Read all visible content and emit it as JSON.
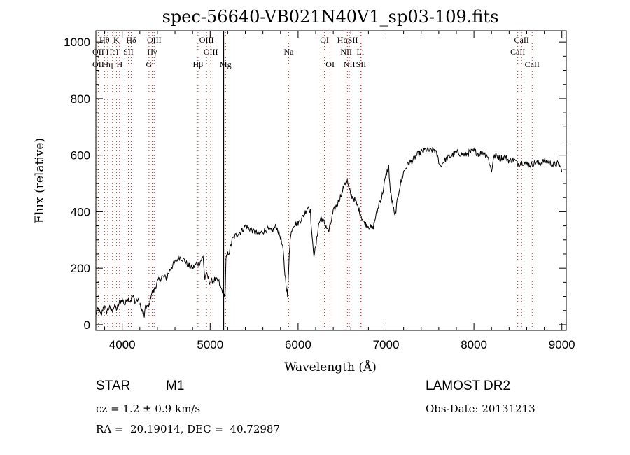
{
  "chart_data": {
    "type": "line",
    "title": "spec-56640-VB021N40V1_sp03-109.fits",
    "xlabel": "Wavelength (Å)",
    "ylabel": "Flux (relative)",
    "xlim": [
      3700,
      9050
    ],
    "ylim": [
      -20,
      1040
    ],
    "xticks": [
      4000,
      5000,
      6000,
      7000,
      8000,
      9000
    ],
    "yticks": [
      0,
      200,
      400,
      600,
      800,
      1000
    ],
    "grid": false,
    "series": [
      {
        "x": [
          3700,
          3730,
          3760,
          3790,
          3820,
          3850,
          3880,
          3910,
          3940,
          3970,
          4000,
          4030,
          4060,
          4090,
          4120,
          4150,
          4180,
          4210,
          4240,
          4250,
          4270,
          4300,
          4330,
          4360,
          4400,
          4450,
          4500,
          4550,
          4600,
          4650,
          4700,
          4750,
          4800,
          4830,
          4850,
          4870,
          4900,
          4920,
          4940,
          4950,
          4970,
          5000,
          5050,
          5100,
          5120,
          5140,
          5160,
          5170,
          5180,
          5200,
          5220,
          5250,
          5300,
          5350,
          5400,
          5450,
          5500,
          5550,
          5600,
          5650,
          5700,
          5750,
          5800,
          5830,
          5850,
          5870,
          5880,
          5890,
          5900,
          5910,
          5930,
          5950,
          6000,
          6050,
          6100,
          6120,
          6140,
          6160,
          6180,
          6200,
          6230,
          6260,
          6300,
          6350,
          6400,
          6450,
          6500,
          6530,
          6560,
          6570,
          6600,
          6650,
          6700,
          6750,
          6800,
          6850,
          6880,
          6900,
          6920,
          6950,
          7000,
          7030,
          7050,
          7080,
          7100,
          7120,
          7150,
          7200,
          7250,
          7300,
          7350,
          7400,
          7450,
          7500,
          7550,
          7580,
          7600,
          7620,
          7640,
          7660,
          7700,
          7750,
          7800,
          7850,
          7900,
          7950,
          8000,
          8050,
          8100,
          8150,
          8180,
          8200,
          8220,
          8250,
          8300,
          8350,
          8400,
          8450,
          8500,
          8550,
          8600,
          8650,
          8700,
          8750,
          8800,
          8850,
          8900,
          8950,
          8980,
          9000
        ],
        "y": [
          40,
          55,
          30,
          70,
          45,
          60,
          50,
          65,
          55,
          80,
          90,
          70,
          95,
          85,
          100,
          80,
          90,
          60,
          40,
          30,
          70,
          60,
          110,
          120,
          150,
          170,
          165,
          200,
          220,
          240,
          230,
          210,
          200,
          210,
          220,
          215,
          230,
          240,
          160,
          180,
          170,
          150,
          160,
          150,
          130,
          120,
          110,
          100,
          230,
          250,
          260,
          300,
          320,
          330,
          350,
          340,
          330,
          320,
          330,
          340,
          330,
          350,
          310,
          260,
          180,
          130,
          100,
          170,
          260,
          300,
          340,
          355,
          360,
          380,
          410,
          420,
          400,
          300,
          250,
          270,
          350,
          380,
          360,
          330,
          400,
          430,
          470,
          500,
          510,
          490,
          460,
          440,
          400,
          360,
          350,
          340,
          380,
          400,
          430,
          450,
          530,
          560,
          470,
          420,
          380,
          420,
          480,
          540,
          570,
          580,
          600,
          610,
          620,
          615,
          620,
          600,
          580,
          560,
          570,
          580,
          590,
          600,
          610,
          605,
          600,
          610,
          615,
          605,
          610,
          600,
          570,
          540,
          590,
          600,
          590,
          595,
          580,
          585,
          570,
          575,
          570,
          565,
          575,
          570,
          580,
          575,
          565,
          570,
          560,
          540
        ]
      }
    ],
    "lines_top": [
      {
        "label": "Hθ",
        "x": 3798
      },
      {
        "label": "K",
        "x": 3934
      },
      {
        "label": "Hδ",
        "x": 4102
      },
      {
        "label": "OIII",
        "x": 4363
      },
      {
        "label": "OIII",
        "x": 4959
      },
      {
        "label": "OI",
        "x": 6300
      },
      {
        "label": "HαSII",
        "x": 6563
      },
      {
        "label": "CaII",
        "x": 8542
      }
    ],
    "lines_mid": [
      {
        "label": "OII",
        "x": 3727
      },
      {
        "label": "HeI",
        "x": 3889
      },
      {
        "label": "SII",
        "x": 4070
      },
      {
        "label": "Hγ",
        "x": 4340
      },
      {
        "label": "OIII",
        "x": 5007
      },
      {
        "label": "Na",
        "x": 5893
      },
      {
        "label": "NII",
        "x": 6548
      },
      {
        "label": "Li",
        "x": 6708
      },
      {
        "label": "CaII",
        "x": 8498
      }
    ],
    "lines_bot": [
      {
        "label": "OII",
        "x": 3727
      },
      {
        "label": "Hη",
        "x": 3835
      },
      {
        "label": "H",
        "x": 3969
      },
      {
        "label": "G",
        "x": 4304
      },
      {
        "label": "Hβ",
        "x": 4861
      },
      {
        "label": "Mg",
        "x": 5175
      },
      {
        "label": "OI",
        "x": 6364
      },
      {
        "label": "NII",
        "x": 6583
      },
      {
        "label": "SII",
        "x": 6717
      },
      {
        "label": "CaII",
        "x": 8662
      }
    ],
    "solid_line": {
      "x": 5150
    }
  },
  "info": {
    "object_type": "STAR",
    "subclass": "M1",
    "survey": "LAMOST DR2",
    "cz": "cz = 1.2 ± 0.9 km/s",
    "obs_date": "Obs-Date: 20131213",
    "coords": "RA =  20.19014, DEC =  40.72987"
  }
}
